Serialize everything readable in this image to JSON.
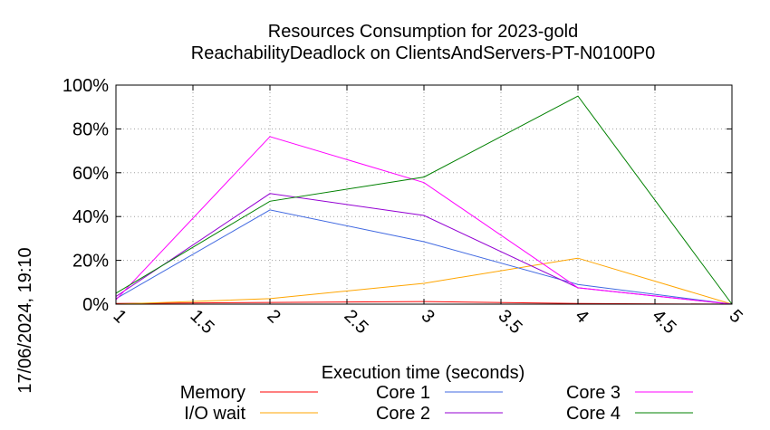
{
  "side_label": "17/06/2024, 19:10",
  "chart_data": {
    "type": "line",
    "title_lines": [
      "Resources Consumption for 2023-gold",
      "ReachabilityDeadlock on ClientsAndServers-PT-N0100P0"
    ],
    "xlabel": "Execution time (seconds)",
    "ylabel": "",
    "xlim": [
      1,
      5
    ],
    "ylim": [
      0,
      100
    ],
    "x_ticks": [
      1,
      1.5,
      2,
      2.5,
      3,
      3.5,
      4,
      4.5,
      5
    ],
    "x_tick_labels": [
      "1",
      "1.5",
      "2",
      "2.5",
      "3",
      "3.5",
      "4",
      "4.5",
      "5"
    ],
    "y_ticks": [
      0,
      20,
      40,
      60,
      80,
      100
    ],
    "y_tick_labels": [
      "0%",
      "20%",
      "40%",
      "60%",
      "80%",
      "100%"
    ],
    "grid": true,
    "legend_position": "bottom",
    "series": [
      {
        "name": "Memory",
        "color": "#ff0000",
        "x": [
          1,
          2,
          3,
          4,
          5
        ],
        "values": [
          0.3,
          0.8,
          1.2,
          0.3,
          0
        ]
      },
      {
        "name": "I/O wait",
        "color": "#ffa500",
        "x": [
          1,
          2,
          3,
          4,
          5
        ],
        "values": [
          0,
          2.5,
          9.5,
          21,
          0
        ]
      },
      {
        "name": "Core 1",
        "color": "#4169e1",
        "x": [
          1,
          2,
          3,
          4,
          5
        ],
        "values": [
          2.5,
          43,
          28.5,
          9,
          0
        ]
      },
      {
        "name": "Core 2",
        "color": "#9400d3",
        "x": [
          1,
          2,
          3,
          4,
          5
        ],
        "values": [
          3.5,
          50.5,
          40.5,
          7.5,
          0
        ]
      },
      {
        "name": "Core 3",
        "color": "#ff00ff",
        "x": [
          1,
          2,
          3,
          4,
          5
        ],
        "values": [
          2,
          76.5,
          55.5,
          7.5,
          0
        ]
      },
      {
        "name": "Core 4",
        "color": "#008000",
        "x": [
          1,
          2,
          3,
          4,
          5
        ],
        "values": [
          5,
          47,
          58,
          95,
          0
        ]
      }
    ]
  }
}
